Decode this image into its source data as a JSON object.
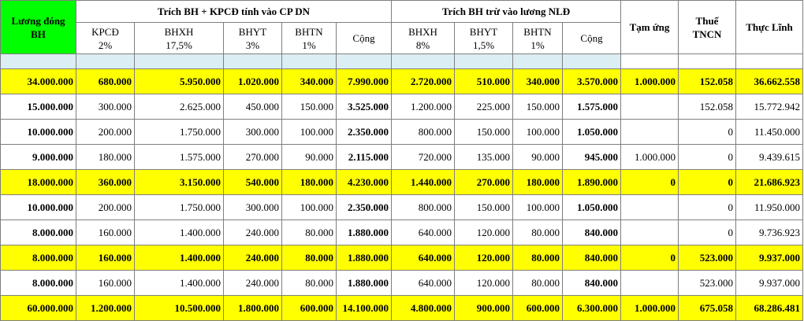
{
  "header": {
    "luong_dong_bh": "Lương đóng BH",
    "group_dn": "Trích BH + KPCĐ tính vào CP DN",
    "group_nld": "Trích BH trừ vào lương NLĐ",
    "tam_ung": "Tạm ứng",
    "thue_tncn": "Thuế TNCN",
    "thuc_linh": "Thực Lĩnh",
    "dn_cols": [
      {
        "name": "KPCĐ",
        "rate": "2%"
      },
      {
        "name": "BHXH",
        "rate": "17,5%"
      },
      {
        "name": "BHYT",
        "rate": "3%"
      },
      {
        "name": "BHTN",
        "rate": "1%"
      }
    ],
    "dn_total": "Cộng",
    "nld_cols": [
      {
        "name": "BHXH",
        "rate": "8%"
      },
      {
        "name": "BHYT",
        "rate": "1,5%"
      },
      {
        "name": "BHTN",
        "rate": "1%"
      }
    ],
    "nld_total": "Cộng"
  },
  "rows": [
    {
      "type": "yellow",
      "v": [
        "34.000.000",
        "680.000",
        "5.950.000",
        "1.020.000",
        "340.000",
        "7.990.000",
        "2.720.000",
        "510.000",
        "340.000",
        "3.570.000",
        "1.000.000",
        "152.058",
        "36.662.558"
      ]
    },
    {
      "type": "normal",
      "v": [
        "15.000.000",
        "300.000",
        "2.625.000",
        "450.000",
        "150.000",
        "3.525.000",
        "1.200.000",
        "225.000",
        "150.000",
        "1.575.000",
        "",
        "152.058",
        "15.772.942"
      ]
    },
    {
      "type": "normal",
      "v": [
        "10.000.000",
        "200.000",
        "1.750.000",
        "300.000",
        "100.000",
        "2.350.000",
        "800.000",
        "150.000",
        "100.000",
        "1.050.000",
        "",
        "0",
        "11.450.000"
      ]
    },
    {
      "type": "normal",
      "v": [
        "9.000.000",
        "180.000",
        "1.575.000",
        "270.000",
        "90.000",
        "2.115.000",
        "720.000",
        "135.000",
        "90.000",
        "945.000",
        "1.000.000",
        "0",
        "9.439.615"
      ]
    },
    {
      "type": "yellow",
      "v": [
        "18.000.000",
        "360.000",
        "3.150.000",
        "540.000",
        "180.000",
        "4.230.000",
        "1.440.000",
        "270.000",
        "180.000",
        "1.890.000",
        "0",
        "0",
        "21.686.923"
      ]
    },
    {
      "type": "normal",
      "v": [
        "10.000.000",
        "200.000",
        "1.750.000",
        "300.000",
        "100.000",
        "2.350.000",
        "800.000",
        "150.000",
        "100.000",
        "1.050.000",
        "",
        "0",
        "11.950.000"
      ]
    },
    {
      "type": "normal",
      "v": [
        "8.000.000",
        "160.000",
        "1.400.000",
        "240.000",
        "80.000",
        "1.880.000",
        "640.000",
        "120.000",
        "80.000",
        "840.000",
        "",
        "0",
        "9.736.923"
      ]
    },
    {
      "type": "yellow",
      "v": [
        "8.000.000",
        "160.000",
        "1.400.000",
        "240.000",
        "80.000",
        "1.880.000",
        "640.000",
        "120.000",
        "80.000",
        "840.000",
        "0",
        "523.000",
        "9.937.000"
      ]
    },
    {
      "type": "normal",
      "v": [
        "8.000.000",
        "160.000",
        "1.400.000",
        "240.000",
        "80.000",
        "1.880.000",
        "640.000",
        "120.000",
        "80.000",
        "840.000",
        "",
        "523.000",
        "9.937.000"
      ]
    },
    {
      "type": "yellow",
      "v": [
        "60.000.000",
        "1.200.000",
        "10.500.000",
        "1.800.000",
        "600.000",
        "14.100.000",
        "4.800.000",
        "900.000",
        "600.000",
        "6.300.000",
        "1.000.000",
        "675.058",
        "68.286.481"
      ]
    }
  ]
}
